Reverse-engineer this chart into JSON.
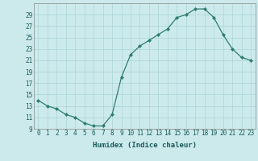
{
  "x": [
    0,
    1,
    2,
    3,
    4,
    5,
    6,
    7,
    8,
    9,
    10,
    11,
    12,
    13,
    14,
    15,
    16,
    17,
    18,
    19,
    20,
    21,
    22,
    23
  ],
  "y": [
    14,
    13,
    12.5,
    11.5,
    11,
    10,
    9.5,
    9.5,
    11.5,
    18,
    22,
    23.5,
    24.5,
    25.5,
    26.5,
    28.5,
    29,
    30,
    30,
    28.5,
    25.5,
    23,
    21.5,
    21
  ],
  "xlabel": "Humidex (Indice chaleur)",
  "line_color": "#2e7d6e",
  "marker_color": "#2e7d6e",
  "bg_color": "#cceaec",
  "grid_color": "#b0d8dc",
  "ylim": [
    9,
    31
  ],
  "xlim": [
    -0.5,
    23.5
  ],
  "yticks": [
    9,
    11,
    13,
    15,
    17,
    19,
    21,
    23,
    25,
    27,
    29
  ],
  "xticks": [
    0,
    1,
    2,
    3,
    4,
    5,
    6,
    7,
    8,
    9,
    10,
    11,
    12,
    13,
    14,
    15,
    16,
    17,
    18,
    19,
    20,
    21,
    22,
    23
  ],
  "tick_fontsize": 5.5,
  "label_fontsize": 6.5
}
